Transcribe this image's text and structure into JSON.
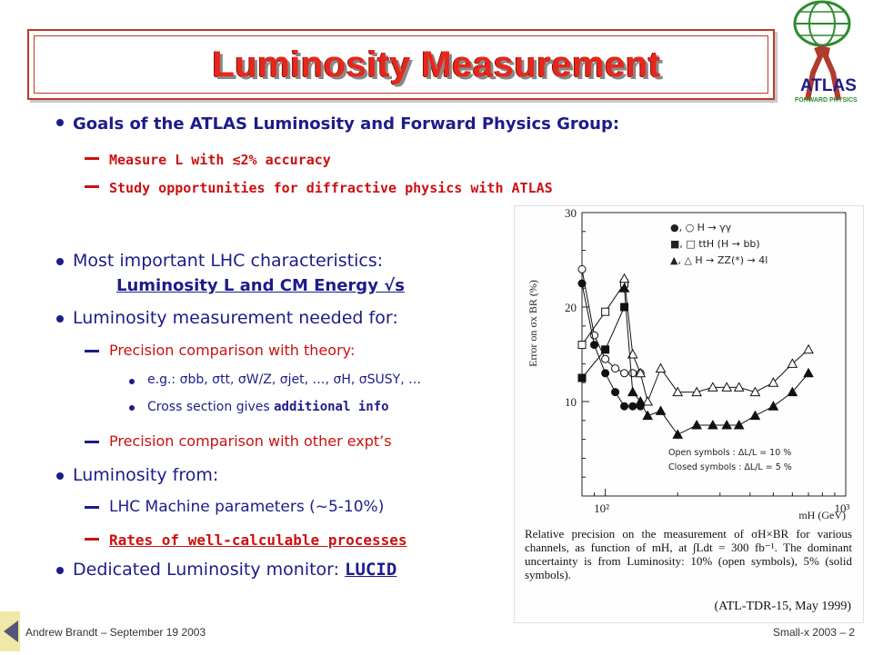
{
  "slide": {
    "title": "Luminosity Measurement",
    "logo_text": "ATLAS",
    "logo_subtext": "FORWARD PHYSICS"
  },
  "content": {
    "goals_heading": "Goals of the ATLAS Luminosity and Forward Physics Group:",
    "goal_1": "Measure L with ≲2% accuracy",
    "goal_2": "Study opportunities for diffractive physics with ATLAS",
    "lhc_line1": "Most important LHC characteristics:",
    "lhc_line2": "Luminosity L and CM Energy √s",
    "needed_heading": "Luminosity measurement needed for:",
    "needed_1": "Precision comparison with theory:",
    "eg_line": "e.g.: σbb, σtt, σW/Z, σjet, …, σH, σSUSY, …",
    "xsec_line_a": "Cross section gives ",
    "xsec_line_b": "additional info",
    "needed_2": "Precision comparison with other expt’s",
    "from_heading": "Luminosity from:",
    "from_1": "LHC Machine parameters (~5-10%)",
    "from_2": "Rates of well-calculable processes",
    "monitor_a": "Dedicated Luminosity monitor: ",
    "monitor_b": "LUCID"
  },
  "figure": {
    "caption": "Relative precision on the measurement of σH×BR for various channels, as function of mH, at ∫Ldt = 300 fb⁻¹. The dominant uncertainty is from Luminosity: 10% (open symbols), 5% (solid symbols).",
    "reference": "(ATL-TDR-15, May 1999)"
  },
  "chart_data": {
    "type": "scatter",
    "ylabel": "Error on σx BR (%)",
    "xlabel": "mH (GeV)",
    "x_scale": "log",
    "xlim": [
      80,
      1000
    ],
    "ylim": [
      0,
      30
    ],
    "x_ticks": [
      "10²",
      "10³"
    ],
    "y_ticks": [
      "10",
      "20",
      "30"
    ],
    "legend": [
      "●, ○  H → γγ",
      "■, □  ttH (H → bb)",
      "▲, △  H → ZZ(*) → 4l"
    ],
    "legend_note": [
      "Open symbols   :  ΔL/L = 10 %",
      "Closed symbols :  ΔL/L = 5 %"
    ],
    "series": [
      {
        "name": "H → γγ open",
        "marker": "circle-open",
        "x": [
          80,
          90,
          100,
          110,
          120,
          130,
          140
        ],
        "y": [
          24,
          17,
          14.5,
          13.5,
          13,
          13,
          13
        ]
      },
      {
        "name": "H → γγ closed",
        "marker": "circle-filled",
        "x": [
          80,
          90,
          100,
          110,
          120,
          130,
          140
        ],
        "y": [
          22.5,
          16,
          13,
          11,
          9.5,
          9.5,
          9.5
        ]
      },
      {
        "name": "ttH open",
        "marker": "square-open",
        "x": [
          80,
          100,
          120
        ],
        "y": [
          16,
          19.5,
          22.5
        ]
      },
      {
        "name": "ttH closed",
        "marker": "square-filled",
        "x": [
          80,
          100,
          120
        ],
        "y": [
          12.5,
          15.5,
          20
        ]
      },
      {
        "name": "H → ZZ open",
        "marker": "triangle-open",
        "x": [
          120,
          130,
          140,
          150,
          170,
          200,
          240,
          280,
          320,
          360,
          420,
          500,
          600,
          700
        ],
        "y": [
          23,
          15,
          13,
          10,
          13.5,
          11,
          11,
          11.5,
          11.5,
          11.5,
          11,
          12,
          14,
          15.5
        ]
      },
      {
        "name": "H → ZZ closed",
        "marker": "triangle-filled",
        "x": [
          120,
          130,
          140,
          150,
          170,
          200,
          240,
          280,
          320,
          360,
          420,
          500,
          600,
          700
        ],
        "y": [
          22,
          11,
          10,
          8.5,
          9,
          6.5,
          7.5,
          7.5,
          7.5,
          7.5,
          8.5,
          9.5,
          11,
          13
        ]
      }
    ]
  },
  "footer": {
    "left": "Andrew Brandt – September 19 2003",
    "right": "Small-x 2003 – 2"
  }
}
